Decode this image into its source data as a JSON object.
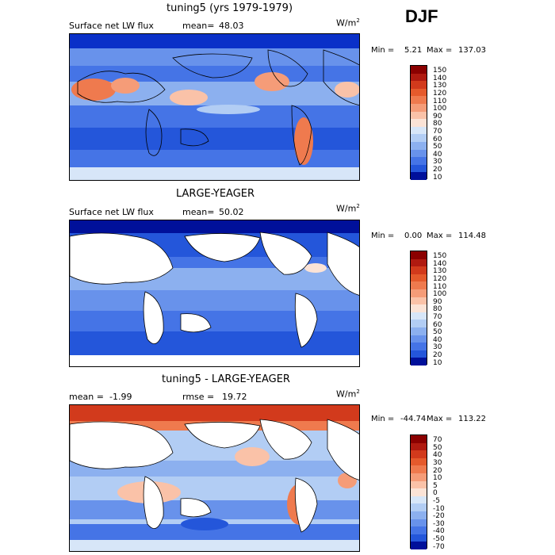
{
  "season": "DJF",
  "unit_label": "W/m",
  "unit_power": "2",
  "panels": [
    {
      "title": "tuning5 (yrs 1979-1979)",
      "left_label": "Surface net LW flux",
      "mean_label": "mean=",
      "mean_value": "48.03",
      "min_label": "Min =",
      "min_value": "5.21",
      "max_label": "Max =",
      "max_value": "137.03",
      "colorbar": [
        "150",
        "140",
        "130",
        "120",
        "110",
        "100",
        "90",
        "80",
        "70",
        "60",
        "50",
        "40",
        "30",
        "20",
        "10"
      ]
    },
    {
      "title": "LARGE-YEAGER",
      "left_label": "Surface net LW flux",
      "mean_label": "mean=",
      "mean_value": "50.02",
      "min_label": "Min =",
      "min_value": "0.00",
      "max_label": "Max =",
      "max_value": "114.48",
      "colorbar": [
        "150",
        "140",
        "130",
        "120",
        "110",
        "100",
        "90",
        "80",
        "70",
        "60",
        "50",
        "40",
        "30",
        "20",
        "10"
      ]
    },
    {
      "title": "tuning5 - LARGE-YEAGER",
      "mean_label": "mean =",
      "mean_value": "-1.99",
      "rmse_label": "rmse =",
      "rmse_value": "19.72",
      "min_label": "Min =",
      "min_value": "-44.74",
      "max_label": "Max =",
      "max_value": "113.22",
      "colorbar": [
        "70",
        "50",
        "40",
        "30",
        "20",
        "10",
        "5",
        "0",
        "-5",
        "-10",
        "-20",
        "-30",
        "-40",
        "-50",
        "-70"
      ]
    }
  ],
  "colors": {
    "scale": [
      "#8b0000",
      "#b01a10",
      "#d23a1c",
      "#e55a2c",
      "#ef7a4e",
      "#f59c78",
      "#fac2a8",
      "#fbe3d6",
      "#d7e6f8",
      "#b2cdf4",
      "#8cb0ef",
      "#6892eb",
      "#4574e6",
      "#2456da",
      "#0a30c8",
      "#00109a"
    ]
  },
  "chart_data": [
    {
      "type": "heatmap",
      "title": "tuning5 (yrs 1979-1979)",
      "season": "DJF",
      "field": "Surface net LW flux",
      "unit": "W/m2",
      "mean": 48.03,
      "min": 5.21,
      "max": 137.03,
      "colorbar_levels": [
        10,
        20,
        30,
        40,
        50,
        60,
        70,
        80,
        90,
        100,
        110,
        120,
        130,
        140,
        150
      ]
    },
    {
      "type": "heatmap",
      "title": "LARGE-YEAGER",
      "season": "DJF",
      "field": "Surface net LW flux",
      "unit": "W/m2",
      "mean": 50.02,
      "min": 0.0,
      "max": 114.48,
      "colorbar_levels": [
        10,
        20,
        30,
        40,
        50,
        60,
        70,
        80,
        90,
        100,
        110,
        120,
        130,
        140,
        150
      ]
    },
    {
      "type": "heatmap",
      "title": "tuning5 - LARGE-YEAGER",
      "season": "DJF",
      "unit": "W/m2",
      "mean": -1.99,
      "rmse": 19.72,
      "min": -44.74,
      "max": 113.22,
      "colorbar_levels": [
        -70,
        -50,
        -40,
        -30,
        -20,
        -10,
        -5,
        0,
        5,
        10,
        20,
        30,
        40,
        50,
        70
      ]
    }
  ]
}
